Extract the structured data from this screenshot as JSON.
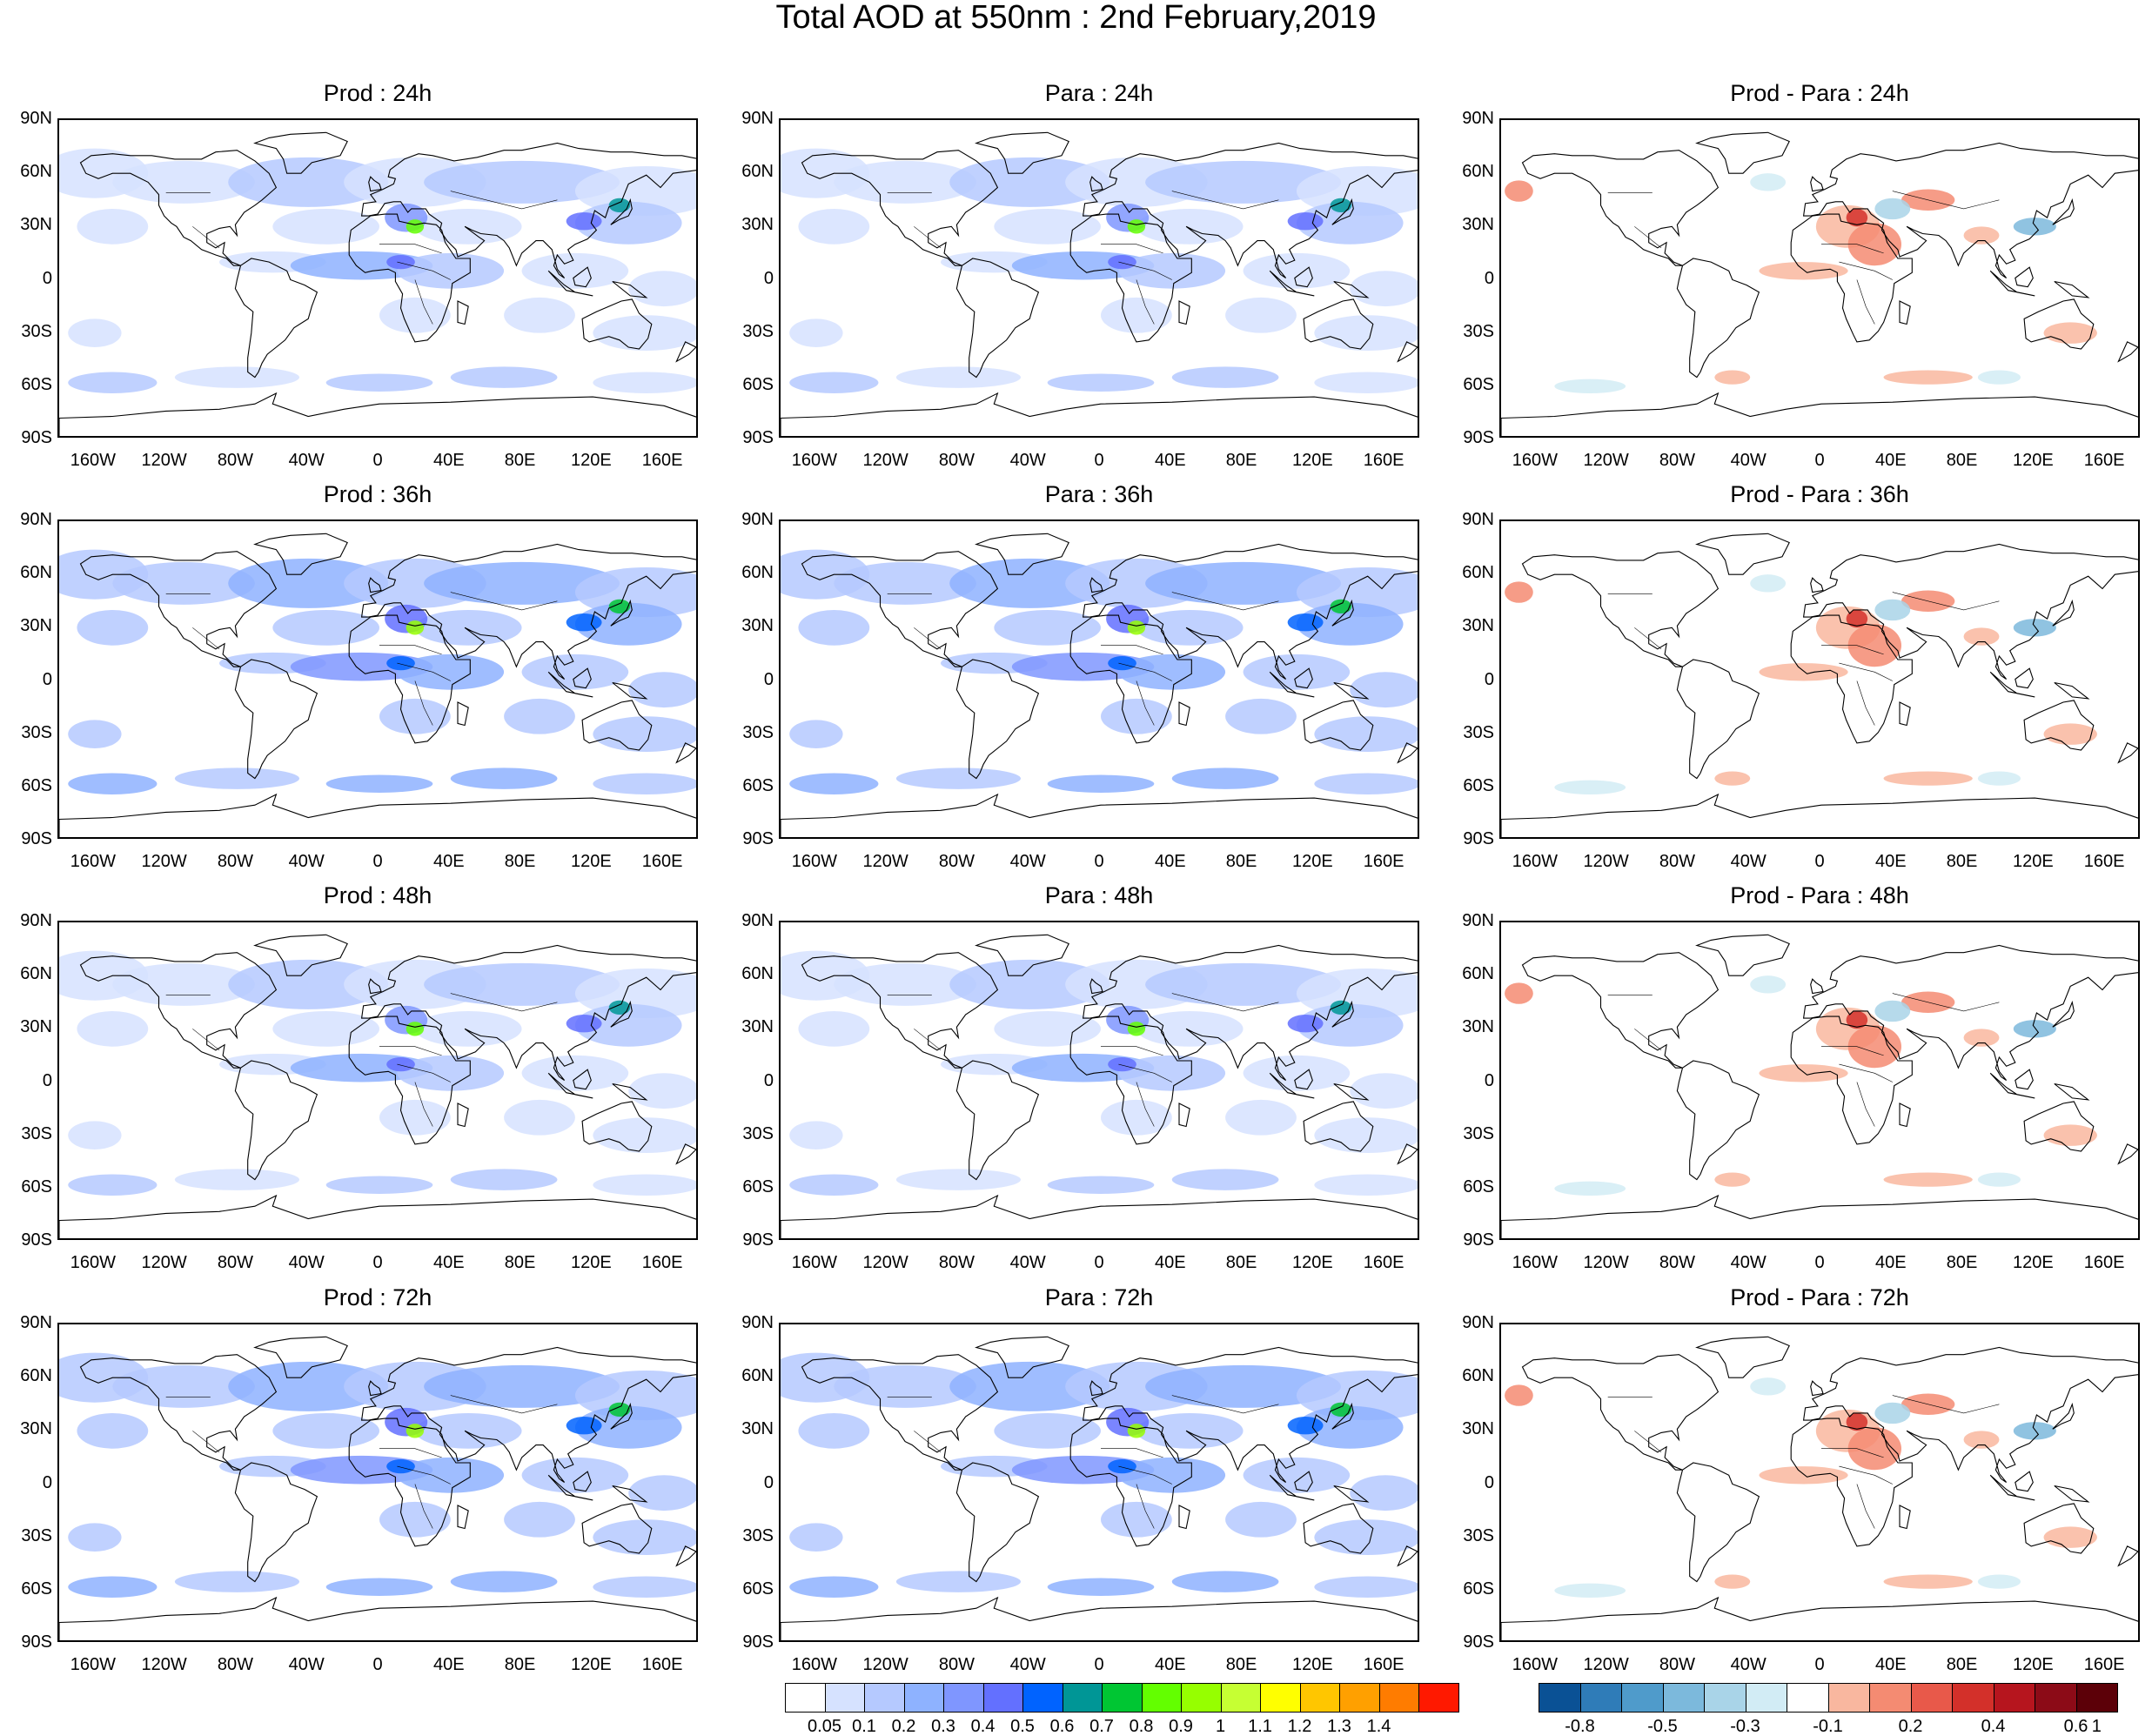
{
  "figure": {
    "title": "Total AOD at 550nm : 2nd February,2019",
    "lat_labels": [
      "90N",
      "60N",
      "30N",
      "0",
      "30S",
      "60S",
      "90S"
    ],
    "lon_labels": [
      "160W",
      "120W",
      "80W",
      "40W",
      "0",
      "40E",
      "80E",
      "120E",
      "160E"
    ],
    "panels": [
      {
        "title": "Prod : 24h",
        "type": "field"
      },
      {
        "title": "Para : 24h",
        "type": "field"
      },
      {
        "title": "Prod - Para : 24h",
        "type": "diff"
      },
      {
        "title": "Prod : 36h",
        "type": "field"
      },
      {
        "title": "Para : 36h",
        "type": "field"
      },
      {
        "title": "Prod - Para : 36h",
        "type": "diff"
      },
      {
        "title": "Prod : 48h",
        "type": "field"
      },
      {
        "title": "Para : 48h",
        "type": "field"
      },
      {
        "title": "Prod - Para : 48h",
        "type": "diff"
      },
      {
        "title": "Prod : 72h",
        "type": "field"
      },
      {
        "title": "Para : 72h",
        "type": "field"
      },
      {
        "title": "Prod - Para : 72h",
        "type": "diff"
      }
    ]
  },
  "colorbar_aod": {
    "labels": [
      "0.05",
      "0.1",
      "0.2",
      "0.3",
      "0.4",
      "0.5",
      "0.6",
      "0.7",
      "0.8",
      "0.9",
      "1",
      "1.1",
      "1.2",
      "1.3",
      "1.4"
    ],
    "colors": [
      "#ffffff",
      "#d6e2ff",
      "#b5c9ff",
      "#8eb2ff",
      "#7f96ff",
      "#6370ff",
      "#0063ff",
      "#009696",
      "#00c633",
      "#63ff00",
      "#96ff00",
      "#c6ff33",
      "#ffff00",
      "#ffc600",
      "#ffa000",
      "#ff7c00",
      "#ff1900"
    ]
  },
  "colorbar_diff": {
    "labels": [
      "-0.8",
      "-0.5",
      "-0.3",
      "-0.1",
      "0.2",
      "0.4",
      "0.6",
      "1"
    ],
    "colors": [
      "#0a5195",
      "#2f7cb8",
      "#4f9bcb",
      "#7cb9dc",
      "#a9d4e8",
      "#d2ecf5",
      "#ffffff",
      "#f9b79f",
      "#f48b72",
      "#e8594a",
      "#d3302a",
      "#b6151e",
      "#8c0b17",
      "#5c0008"
    ]
  }
}
